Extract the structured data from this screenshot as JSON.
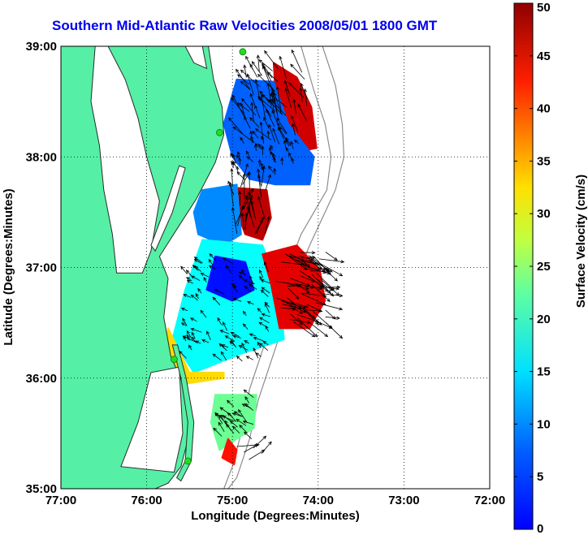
{
  "title": "Southern Mid-Atlantic Raw Velocities 2008/05/01 1800 GMT",
  "colors": {
    "land": "#55f0a5",
    "coast_line": "#2b2b2b",
    "isobath": "#8c8c8c",
    "station_marker": "#22dd22",
    "arrow": "#000000"
  },
  "map": {
    "lon_range": [
      -77,
      -72
    ],
    "lat_range": [
      35,
      39
    ],
    "x_axis_label": "Longitude (Degrees:Minutes)",
    "y_axis_label": "Latitude (Degrees:Minutes)",
    "x_ticks": [
      {
        "value": -77,
        "label": "77:00"
      },
      {
        "value": -76,
        "label": "76:00"
      },
      {
        "value": -75,
        "label": "75:00"
      },
      {
        "value": -74,
        "label": "74:00"
      },
      {
        "value": -73,
        "label": "73:00"
      },
      {
        "value": -72,
        "label": "72:00"
      }
    ],
    "y_ticks": [
      {
        "value": 35,
        "label": "35:00"
      },
      {
        "value": 36,
        "label": "36:00"
      },
      {
        "value": 37,
        "label": "37:00"
      },
      {
        "value": 38,
        "label": "38:00"
      },
      {
        "value": 39,
        "label": "39:00"
      }
    ],
    "grid": "dotted"
  },
  "colorbar": {
    "label": "Surface Velocity (cm/s)",
    "min": 0,
    "max": 50,
    "colormap": "jet",
    "ticks": [
      {
        "value": 0,
        "label": "0"
      },
      {
        "value": 5,
        "label": "5"
      },
      {
        "value": 10,
        "label": "10"
      },
      {
        "value": 15,
        "label": "15"
      },
      {
        "value": 20,
        "label": "20"
      },
      {
        "value": 25,
        "label": "25"
      },
      {
        "value": 30,
        "label": "30"
      },
      {
        "value": 35,
        "label": "35"
      },
      {
        "value": 40,
        "label": "40"
      },
      {
        "value": 45,
        "label": "45"
      },
      {
        "value": 50,
        "label": "50"
      }
    ]
  },
  "stations": [
    {
      "lon": -74.88,
      "lat": 38.95
    },
    {
      "lon": -75.15,
      "lat": 38.22
    },
    {
      "lon": -75.68,
      "lat": 36.17
    },
    {
      "lon": -75.52,
      "lat": 35.25
    }
  ],
  "velocity_regions": [
    {
      "name": "north-lobe-red",
      "speed": 46,
      "poly": [
        [
          -74.52,
          38.85
        ],
        [
          -74.25,
          38.72
        ],
        [
          -74.08,
          38.45
        ],
        [
          -74.02,
          38.08
        ],
        [
          -74.22,
          38.05
        ],
        [
          -74.38,
          38.3
        ],
        [
          -74.5,
          38.6
        ]
      ]
    },
    {
      "name": "north-lobe-cyan",
      "speed": 11,
      "poly": [
        [
          -74.95,
          38.7
        ],
        [
          -74.52,
          38.68
        ],
        [
          -74.35,
          38.3
        ],
        [
          -74.05,
          38.0
        ],
        [
          -74.1,
          37.75
        ],
        [
          -74.5,
          37.75
        ],
        [
          -74.8,
          37.8
        ],
        [
          -75.0,
          38.0
        ],
        [
          -75.1,
          38.3
        ]
      ]
    },
    {
      "name": "mid-strip-red",
      "speed": 47,
      "poly": [
        [
          -74.95,
          37.72
        ],
        [
          -74.6,
          37.7
        ],
        [
          -74.55,
          37.45
        ],
        [
          -74.65,
          37.25
        ],
        [
          -74.85,
          37.3
        ],
        [
          -74.95,
          37.5
        ]
      ]
    },
    {
      "name": "mid-strip-cyan",
      "speed": 13,
      "poly": [
        [
          -75.35,
          37.7
        ],
        [
          -74.95,
          37.75
        ],
        [
          -74.9,
          37.3
        ],
        [
          -75.1,
          37.2
        ],
        [
          -75.4,
          37.3
        ],
        [
          -75.45,
          37.5
        ]
      ]
    },
    {
      "name": "south-lobe-green",
      "speed": 19,
      "poly": [
        [
          -75.35,
          37.25
        ],
        [
          -74.65,
          37.2
        ],
        [
          -74.45,
          36.8
        ],
        [
          -74.4,
          36.35
        ],
        [
          -74.9,
          36.22
        ],
        [
          -75.45,
          36.05
        ],
        [
          -75.7,
          36.35
        ],
        [
          -75.55,
          36.8
        ]
      ]
    },
    {
      "name": "south-lobe-blue",
      "speed": 7,
      "poly": [
        [
          -75.2,
          37.1
        ],
        [
          -74.85,
          37.05
        ],
        [
          -74.75,
          36.8
        ],
        [
          -75.0,
          36.7
        ],
        [
          -75.3,
          36.8
        ]
      ]
    },
    {
      "name": "east-bulge-red",
      "speed": 45,
      "poly": [
        [
          -74.65,
          37.12
        ],
        [
          -74.25,
          37.2
        ],
        [
          -73.98,
          36.98
        ],
        [
          -73.92,
          36.7
        ],
        [
          -74.1,
          36.45
        ],
        [
          -74.45,
          36.45
        ],
        [
          -74.55,
          36.85
        ]
      ]
    },
    {
      "name": "south-edge-orange",
      "speed": 33,
      "poly": [
        [
          -75.75,
          36.45
        ],
        [
          -75.5,
          36.05
        ],
        [
          -75.1,
          36.05
        ],
        [
          -75.1,
          36.0
        ],
        [
          -75.55,
          35.95
        ],
        [
          -75.8,
          36.2
        ]
      ]
    },
    {
      "name": "hatteras-yellow",
      "speed": 24,
      "poly": [
        [
          -75.2,
          35.85
        ],
        [
          -74.72,
          35.85
        ],
        [
          -74.75,
          35.55
        ],
        [
          -74.95,
          35.45
        ],
        [
          -75.15,
          35.35
        ],
        [
          -75.25,
          35.6
        ]
      ]
    },
    {
      "name": "hatteras-red",
      "speed": 43,
      "poly": [
        [
          -75.05,
          35.45
        ],
        [
          -74.95,
          35.35
        ],
        [
          -74.98,
          35.22
        ],
        [
          -75.12,
          35.28
        ]
      ]
    }
  ],
  "vector_field": [
    {
      "lon_range": [
        -74.9,
        -74.1
      ],
      "lat_range": [
        38.1,
        38.8
      ],
      "count": 70,
      "u": -0.35,
      "v": 0.6,
      "speed": 40
    },
    {
      "lon_range": [
        -75.0,
        -74.2
      ],
      "lat_range": [
        37.8,
        38.2
      ],
      "count": 40,
      "u": -0.2,
      "v": 0.4,
      "speed": 15
    },
    {
      "lon_range": [
        -75.0,
        -74.6
      ],
      "lat_range": [
        37.3,
        37.75
      ],
      "count": 30,
      "u": 0.05,
      "v": 0.9,
      "speed": 45
    },
    {
      "lon_range": [
        -74.5,
        -73.9
      ],
      "lat_range": [
        36.5,
        37.15
      ],
      "count": 70,
      "u": 0.95,
      "v": -0.4,
      "speed": 45
    },
    {
      "lon_range": [
        -75.55,
        -74.55
      ],
      "lat_range": [
        36.15,
        37.1
      ],
      "count": 90,
      "u": -0.4,
      "v": 0.35,
      "speed": 18
    },
    {
      "lon_range": [
        -75.15,
        -74.75
      ],
      "lat_range": [
        35.45,
        35.85
      ],
      "count": 25,
      "u": -0.5,
      "v": 0.4,
      "speed": 25
    },
    {
      "lon_range": [
        -75.0,
        -74.65
      ],
      "lat_range": [
        35.25,
        35.4
      ],
      "count": 5,
      "u": 1.0,
      "v": 0.45,
      "speed": 45
    }
  ]
}
